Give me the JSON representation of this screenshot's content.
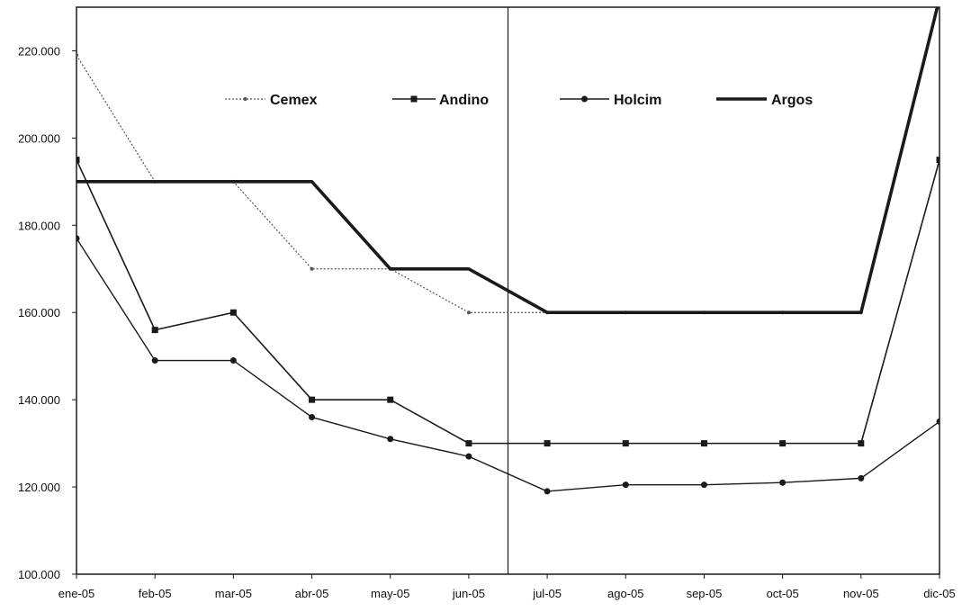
{
  "chart_data": {
    "type": "line",
    "title": "",
    "xlabel": "",
    "ylabel": "",
    "categories": [
      "ene-05",
      "feb-05",
      "mar-05",
      "abr-05",
      "may-05",
      "jun-05",
      "jul-05",
      "ago-05",
      "sep-05",
      "oct-05",
      "nov-05",
      "dic-05"
    ],
    "ylim": [
      100000,
      230000
    ],
    "yticks": [
      100000,
      120000,
      140000,
      160000,
      180000,
      200000,
      220000
    ],
    "ytick_labels": [
      "100.000",
      "120.000",
      "140.000",
      "160.000",
      "180.000",
      "200.000",
      "220.000"
    ],
    "grid": false,
    "legend_position": "top",
    "vertical_marker_between": [
      "jun-05",
      "jul-05"
    ],
    "series": [
      {
        "name": "Cemex",
        "style": "dotted",
        "values": [
          219000,
          190000,
          190000,
          170000,
          170000,
          160000,
          160000,
          160000,
          160000,
          160000,
          160000,
          232000
        ]
      },
      {
        "name": "Andino",
        "style": "solid-square",
        "values": [
          195000,
          156000,
          160000,
          140000,
          140000,
          130000,
          130000,
          130000,
          130000,
          130000,
          130000,
          195000
        ]
      },
      {
        "name": "Holcim",
        "style": "solid-dot",
        "values": [
          177000,
          149000,
          149000,
          136000,
          131000,
          127000,
          119000,
          120500,
          120500,
          121000,
          122000,
          135000
        ]
      },
      {
        "name": "Argos",
        "style": "thick",
        "values": [
          190000,
          190000,
          190000,
          190000,
          170000,
          170000,
          160000,
          160000,
          160000,
          160000,
          160000,
          232000
        ]
      }
    ],
    "colors": {
      "line": "#1a1a1a",
      "cemex": "#555555"
    }
  }
}
